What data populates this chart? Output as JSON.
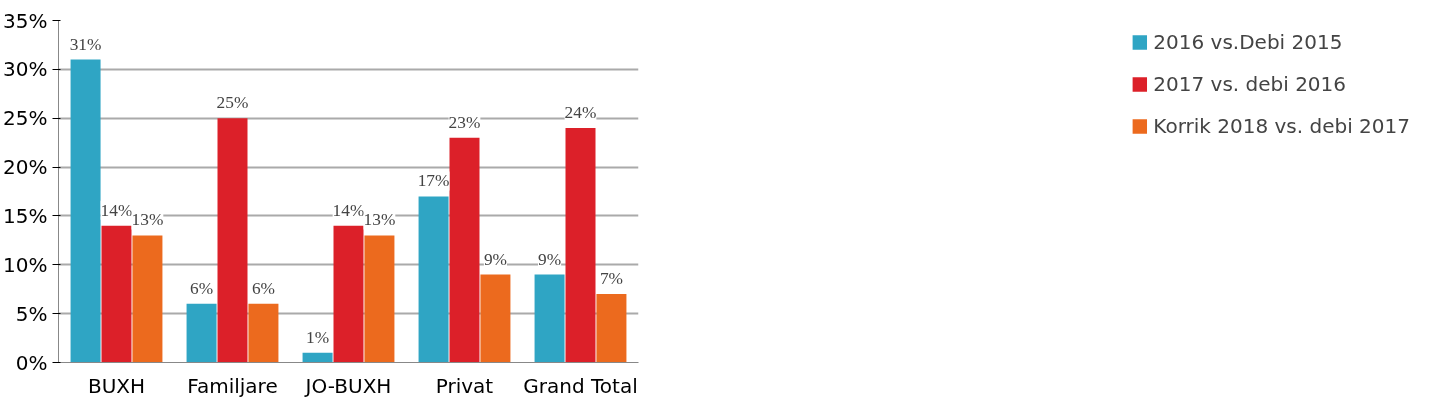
{
  "chart_data": {
    "type": "bar",
    "categories": [
      "BUXH",
      "Familjare",
      "JO-BUXH",
      "Privat",
      "Grand Total"
    ],
    "series": [
      {
        "name": "2016 vs.Debi 2015",
        "color": "#2fa5c4",
        "values": [
          31,
          6,
          1,
          17,
          9
        ],
        "value_labels": [
          "31%",
          "6%",
          "1%",
          "17%",
          "9%"
        ]
      },
      {
        "name": "2017 vs. debi 2016",
        "color": "#dc2029",
        "values": [
          14,
          25,
          14,
          23,
          24
        ],
        "value_labels": [
          "14%",
          "25%",
          "14%",
          "23%",
          "24%"
        ]
      },
      {
        "name": "Korrik 2018 vs. debi 2017",
        "color": "#ec6a1e",
        "values": [
          13,
          6,
          13,
          9,
          7
        ],
        "value_labels": [
          "13%",
          "6%",
          "13%",
          "9%",
          "7%"
        ]
      }
    ],
    "ylim": [
      0,
      35
    ],
    "yticks": [
      {
        "value": 0,
        "label": "0%"
      },
      {
        "value": 5,
        "label": "5%"
      },
      {
        "value": 10,
        "label": "10%"
      },
      {
        "value": 15,
        "label": "15%"
      },
      {
        "value": 20,
        "label": "20%"
      },
      {
        "value": 25,
        "label": "25%"
      },
      {
        "value": 30,
        "label": "30%"
      },
      {
        "value": 35,
        "label": "35%"
      }
    ],
    "grid": "y",
    "legend": "right"
  }
}
